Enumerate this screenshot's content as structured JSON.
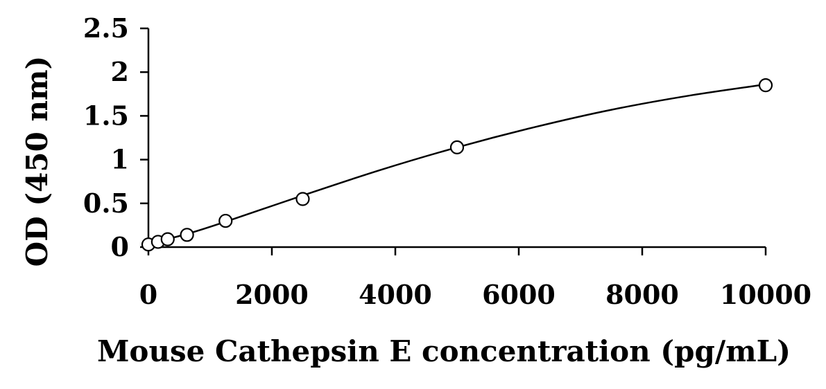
{
  "chart_data": {
    "type": "scatter",
    "title": "",
    "xlabel": "Mouse Cathepsin E concentration (pg/mL)",
    "ylabel": "OD (450 nm)",
    "xlim": [
      0,
      10000
    ],
    "ylim": [
      0,
      2.5
    ],
    "x_ticks": [
      0,
      2000,
      4000,
      6000,
      8000,
      10000
    ],
    "x_tick_labels": [
      "0",
      "2000",
      "4000",
      "6000",
      "8000",
      "10000"
    ],
    "y_ticks": [
      0,
      0.5,
      1,
      1.5,
      2,
      2.5
    ],
    "y_tick_labels": [
      "0",
      "0.5",
      "1",
      "1.5",
      "2",
      "2.5"
    ],
    "grid": false,
    "legend": "none",
    "series": [
      {
        "marker": "open-circle",
        "color": "#000000",
        "x": [
          0,
          156,
          312,
          625,
          1250,
          2500,
          5000,
          10000
        ],
        "y": [
          0.03,
          0.06,
          0.09,
          0.14,
          0.3,
          0.55,
          1.14,
          1.85
        ]
      }
    ],
    "fit_curve": {
      "type": "smooth",
      "color": "#000000",
      "x": [
        0,
        625,
        1250,
        2500,
        3750,
        5000,
        6250,
        7500,
        8750,
        10000
      ],
      "y": [
        0.04,
        0.15,
        0.29,
        0.59,
        0.88,
        1.14,
        1.37,
        1.57,
        1.73,
        1.86
      ]
    }
  }
}
